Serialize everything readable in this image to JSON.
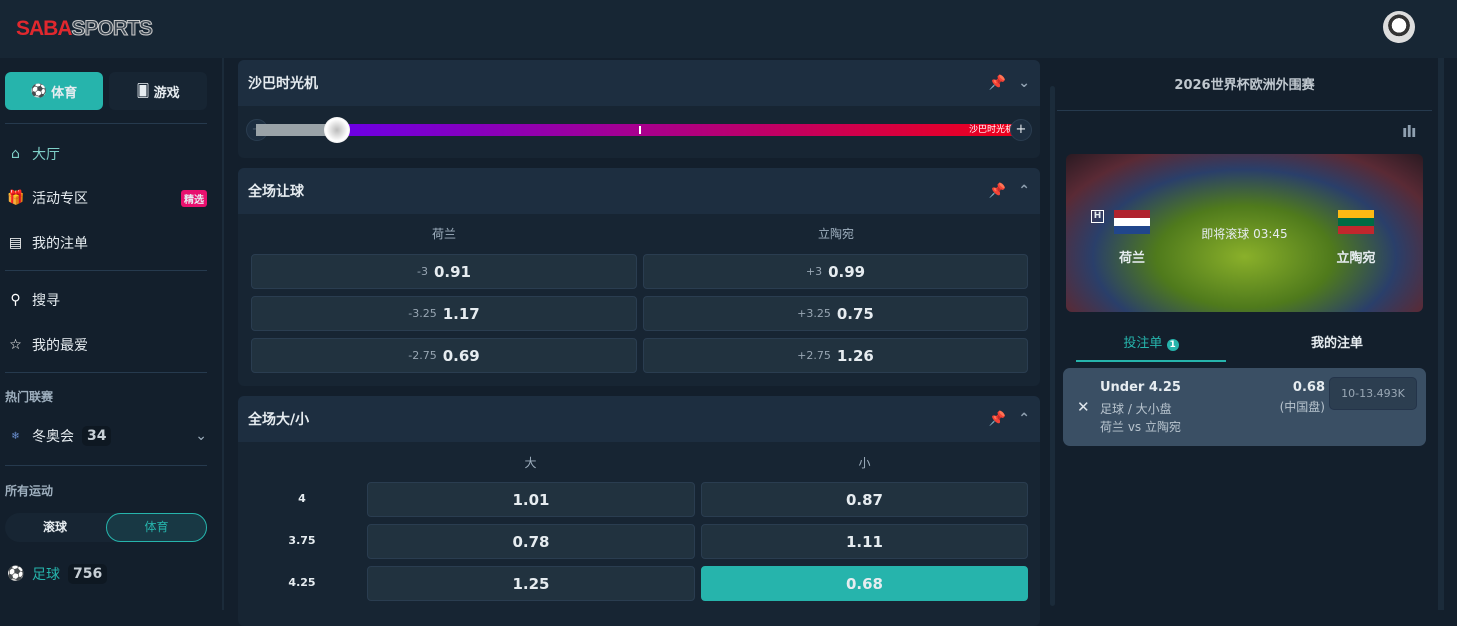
{
  "header": {
    "logo": "SABASPORTS"
  },
  "sidebar": {
    "toggle": [
      {
        "label": "体育",
        "icon": "soccer-ball-icon",
        "active": true
      },
      {
        "label": "游戏",
        "icon": "cards-icon",
        "active": false
      }
    ],
    "items": [
      {
        "label": "大厅",
        "icon": "home-icon",
        "active": true
      },
      {
        "label": "活动专区",
        "icon": "gift-icon",
        "badge": "精选"
      },
      {
        "label": "我的注单",
        "icon": "bet-slip-icon"
      },
      {
        "label": "搜寻",
        "icon": "search-icon"
      },
      {
        "label": "我的最爱",
        "icon": "star-icon"
      }
    ],
    "hot_leagues_title": "热门联赛",
    "hot_leagues": [
      {
        "label": "冬奥会",
        "count": "34",
        "icon": "olympics-icon"
      }
    ],
    "all_sports_title": "所有运动",
    "sport_tabs": [
      {
        "label": "滚球",
        "active": false
      },
      {
        "label": "体育",
        "active": true
      }
    ],
    "sports": [
      {
        "label": "足球",
        "count": "756",
        "icon": "soccer-ball-icon"
      }
    ]
  },
  "time_machine": {
    "title": "沙巴时光机",
    "slider_label": "沙巴时光机",
    "minus": "−",
    "plus": "+"
  },
  "handicap": {
    "title": "全场让球",
    "teams": [
      "荷兰",
      "立陶宛"
    ],
    "rows": [
      [
        {
          "hc": "-3",
          "odds": "0.91"
        },
        {
          "hc": "+3",
          "odds": "0.99"
        }
      ],
      [
        {
          "hc": "-3.25",
          "odds": "1.17"
        },
        {
          "hc": "+3.25",
          "odds": "0.75"
        }
      ],
      [
        {
          "hc": "-2.75",
          "odds": "0.69"
        },
        {
          "hc": "+2.75",
          "odds": "1.26"
        }
      ]
    ]
  },
  "over_under": {
    "title": "全场大/小",
    "cols": [
      "大",
      "小"
    ],
    "rows": [
      {
        "line": "4",
        "over": "1.01",
        "under": "0.87"
      },
      {
        "line": "3.75",
        "over": "0.78",
        "under": "1.11"
      },
      {
        "line": "4.25",
        "over": "1.25",
        "under": "0.68",
        "selected": "under"
      }
    ]
  },
  "match": {
    "league": "2026世界杯欧洲外围赛",
    "home": "荷兰",
    "away": "立陶宛",
    "home_marker": "H",
    "status": "即将滚球 03:45"
  },
  "betslip": {
    "tabs": [
      {
        "label": "投注单",
        "badge": "1",
        "active": true
      },
      {
        "label": "我的注单"
      }
    ],
    "bet": {
      "selection": "Under 4.25",
      "market": "足球 / 大小盘",
      "match": "荷兰 vs 立陶宛",
      "odds": "0.68",
      "odds_type": "(中国盘)",
      "stake_placeholder": "10-13.493K"
    }
  },
  "colors": {
    "accent": "#26b4ac",
    "badge": "#e8106e"
  }
}
